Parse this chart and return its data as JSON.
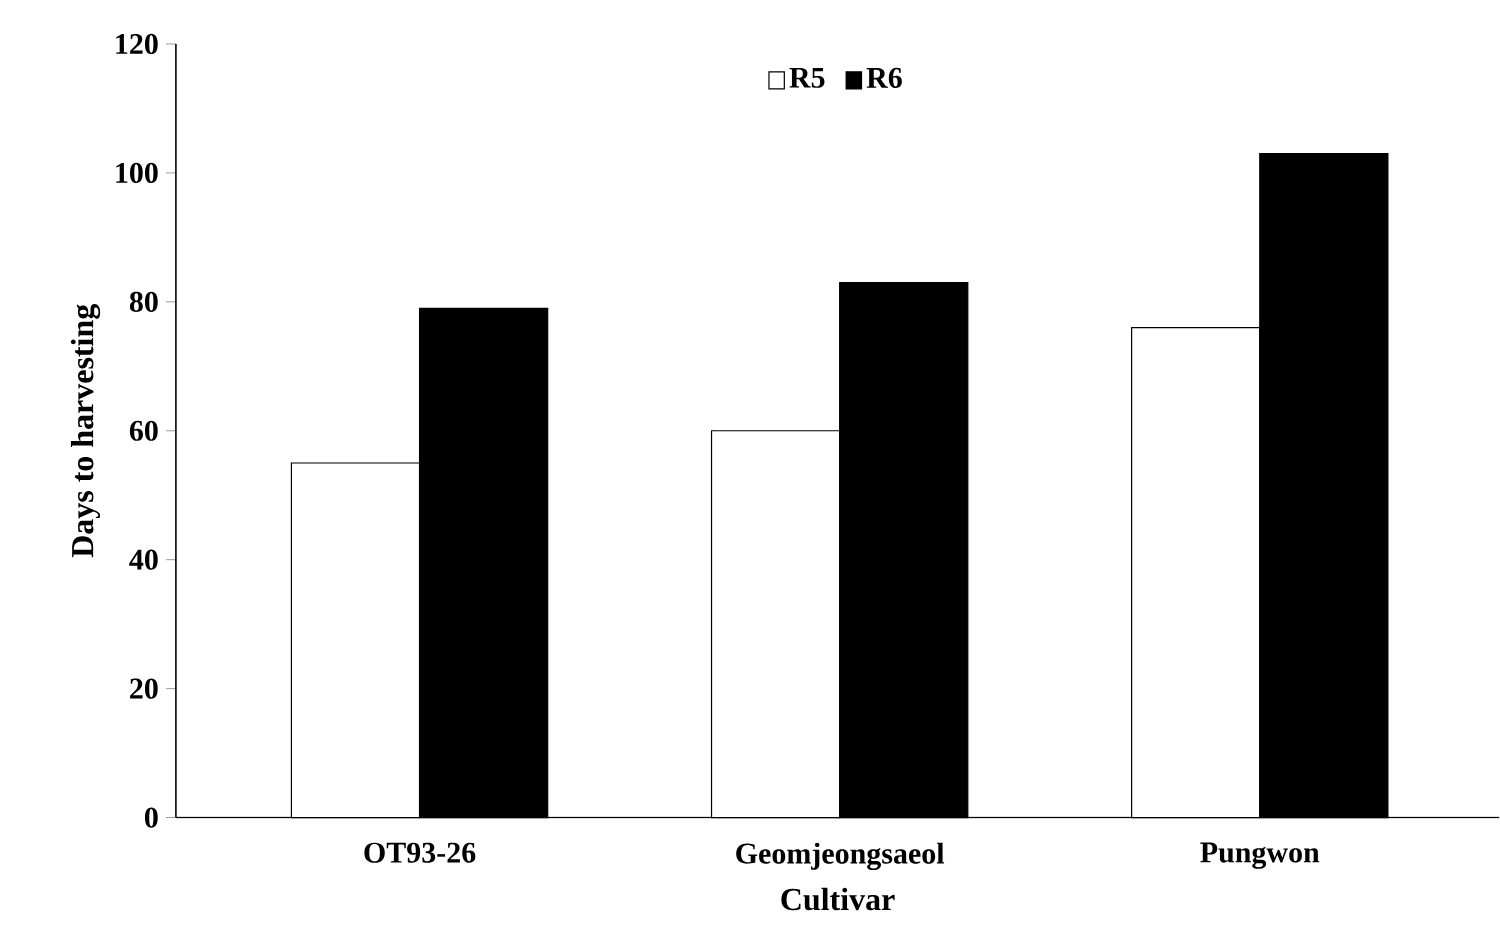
{
  "chart_data": {
    "type": "bar",
    "xlabel": "Cultivar",
    "ylabel": "Days to harvesting",
    "categories": [
      "OT93-26",
      "Geomjeongsaeol",
      "Pungwon"
    ],
    "series": [
      {
        "name": "R5",
        "color": "#ffffff",
        "values": [
          55,
          60,
          76
        ]
      },
      {
        "name": "R6",
        "color": "#000000",
        "values": [
          79,
          83,
          103
        ]
      }
    ],
    "ylim": [
      0,
      120
    ],
    "yticks": [
      0,
      20,
      40,
      60,
      80,
      100,
      120
    ],
    "legend": "top"
  }
}
